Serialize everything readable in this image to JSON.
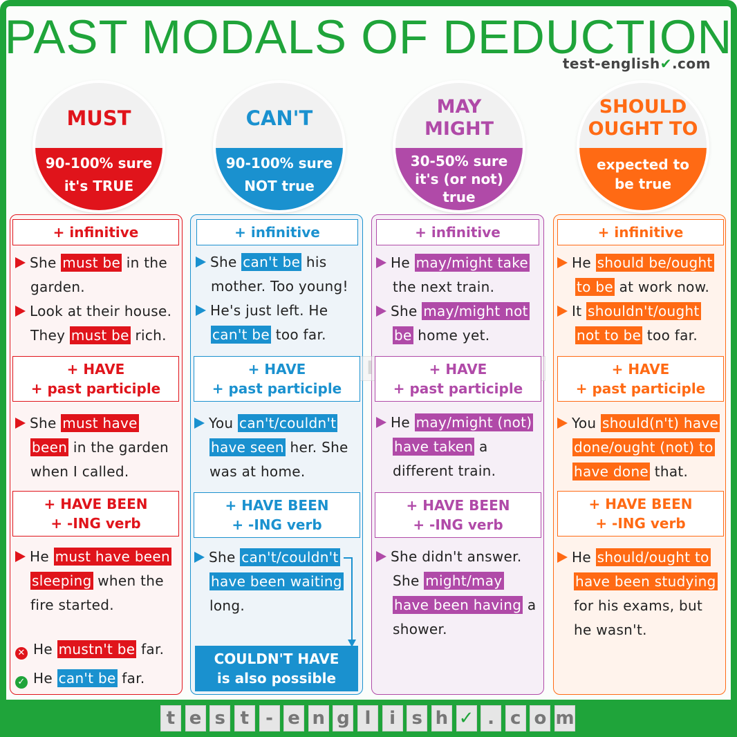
{
  "title": "PAST MODALS OF DEDUCTION",
  "brand": "test-english",
  "brand_check": "✔",
  "brand_tld": ".com",
  "colors": {
    "green": "#1fa43a",
    "red": "#e0141b",
    "blue": "#1a91cf",
    "purple": "#b04aa8",
    "orange": "#ff6a14"
  },
  "columns": {
    "must": {
      "circle_title": "MUST",
      "line1": "90-100% sure",
      "line2": "it's TRUE",
      "hdr1": "+ infinitive",
      "hdr2_a": "+ HAVE",
      "hdr2_b": "+ past participle",
      "hdr3_a": "+ HAVE BEEN",
      "hdr3_b": "+ -ING verb",
      "ex1": {
        "a": "She ",
        "h": "must be",
        "b": " in the",
        "c": "garden."
      },
      "ex2": {
        "a": "Look at their house.",
        "b": "They ",
        "h": "must be",
        "c": " rich."
      },
      "ex3": {
        "a": "She ",
        "h1": "must have",
        "h2": "been",
        "b": " in the garden",
        "c": "when I called."
      },
      "ex4": {
        "a": "He ",
        "h1": "must have been",
        "h2": "sleeping",
        "b": " when the",
        "c": "fire started."
      },
      "wrong": {
        "a": "He ",
        "h": "mustn't be",
        "b": " far."
      },
      "right": {
        "a": "He ",
        "h": "can't be",
        "b": " far."
      }
    },
    "cant": {
      "circle_title": "CAN'T",
      "line1": "90-100% sure",
      "line2": "NOT true",
      "hdr1": "+ infinitive",
      "hdr2_a": "+ HAVE",
      "hdr2_b": "+ past participle",
      "hdr3_a": "+ HAVE BEEN",
      "hdr3_b": "+ -ING verb",
      "ex1": {
        "a": "She ",
        "h": "can't be",
        "b": " his",
        "c": "mother. Too young!"
      },
      "ex2": {
        "a": "He's just left. He",
        "h": "can't be",
        "b": " too far."
      },
      "ex3": {
        "a": "You ",
        "h1": "can't/couldn't",
        "h2": "have seen",
        "b": " her. She",
        "c": "was at home."
      },
      "ex4": {
        "a": "She ",
        "h1": "can't/couldn't",
        "h2": "have been waiting",
        "c": "long."
      },
      "note1": "COULDN'T HAVE",
      "note2": "is also possible"
    },
    "may": {
      "circle_title1": "MAY",
      "circle_title2": "MIGHT",
      "line1": "30-50% sure",
      "line2": "it's (or not)",
      "line3": "true",
      "hdr1": "+ infinitive",
      "hdr2_a": "+ HAVE",
      "hdr2_b": "+ past participle",
      "hdr3_a": "+ HAVE BEEN",
      "hdr3_b": "+ -ING verb",
      "ex1": {
        "a": "He ",
        "h": "may/might take",
        "c": "the next train."
      },
      "ex2": {
        "a": "She ",
        "h1": "may/might not",
        "h2": "be",
        "b": " home yet."
      },
      "ex3": {
        "a": "He ",
        "h1": "may/might (not)",
        "h2": "have taken",
        "b": " a",
        "c": "different train."
      },
      "ex4": {
        "a": "She didn't answer.",
        "b": "She ",
        "h1": "might/may",
        "h2": "have been having",
        "c": " a",
        "d": "shower."
      }
    },
    "should": {
      "circle_title1": "SHOULD",
      "circle_title2": "OUGHT TO",
      "line1": "expected to",
      "line2": "be true",
      "hdr1": "+ infinitive",
      "hdr2_a": "+ HAVE",
      "hdr2_b": "+ past participle",
      "hdr3_a": "+ HAVE BEEN",
      "hdr3_b": "+ -ING verb",
      "ex1": {
        "a": "He ",
        "h1": "should be/ought",
        "h2": "to be",
        "b": " at work now."
      },
      "ex2": {
        "a": "It ",
        "h1": "shouldn't/ought",
        "h2": "not to be",
        "b": " too far."
      },
      "ex3": {
        "a": "You ",
        "h1": "should(n't) have",
        "h2": "done/ought (not) to",
        "h3": "have done",
        "b": " that."
      },
      "ex4": {
        "a": "He ",
        "h1": "should/ought to",
        "h2": "have been studying",
        "c": "for his exams, but",
        "d": "he wasn't."
      }
    }
  },
  "watermark": [
    "t",
    "e",
    "s",
    "t",
    "-",
    "e",
    "n",
    "g",
    "l",
    "i",
    "s",
    "h",
    "✓",
    ".",
    "c",
    "o",
    "m"
  ],
  "footer": [
    "t",
    "e",
    "s",
    "t",
    "-",
    "e",
    "n",
    "g",
    "l",
    "i",
    "s",
    "h",
    "✓",
    ".",
    "c",
    "o",
    "m"
  ]
}
